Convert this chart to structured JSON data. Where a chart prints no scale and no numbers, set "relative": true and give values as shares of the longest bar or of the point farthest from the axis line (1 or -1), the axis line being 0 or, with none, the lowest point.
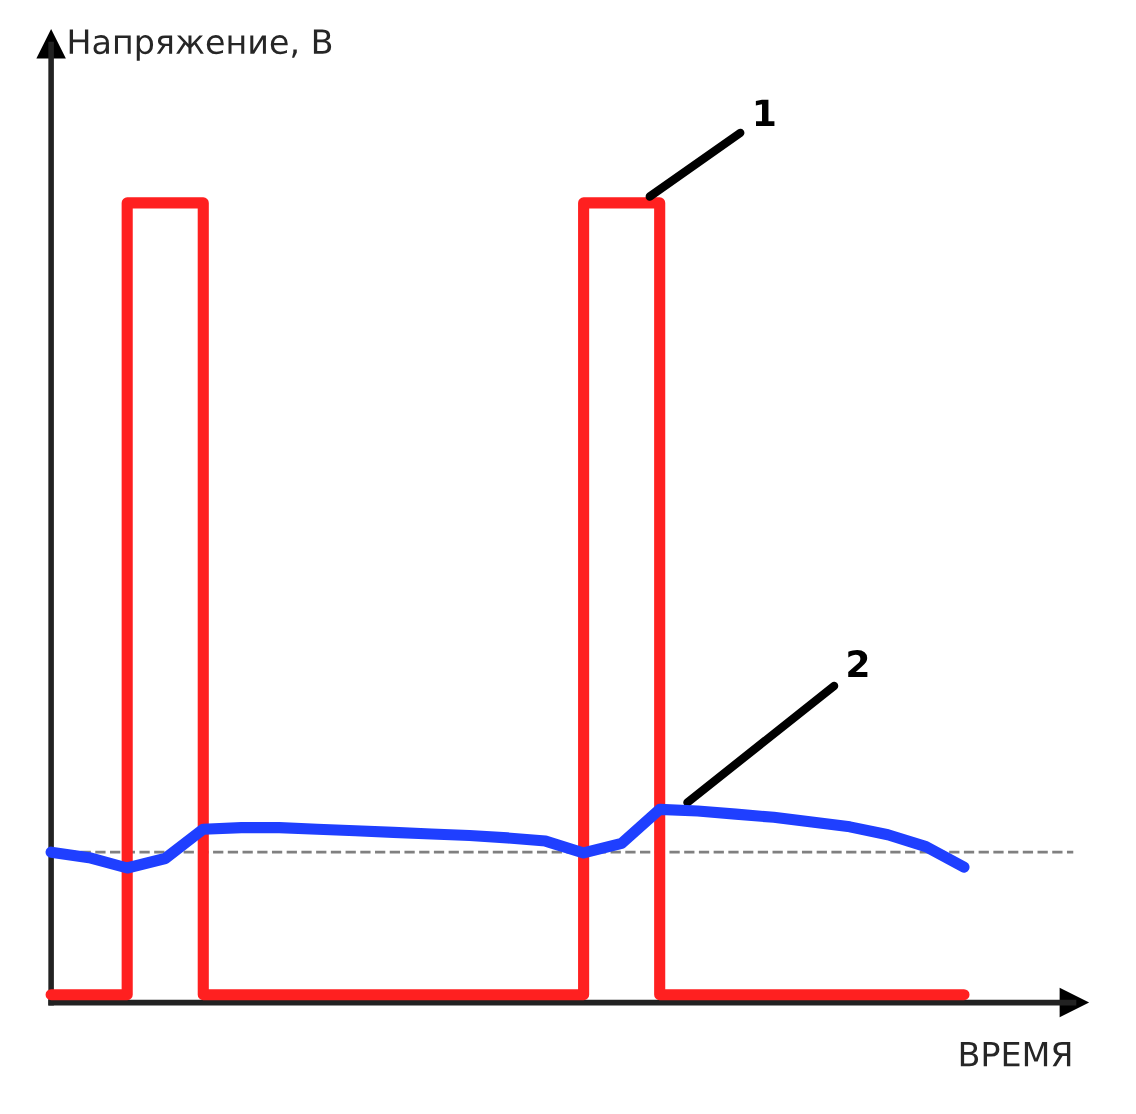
{
  "chart_data": {
    "type": "line",
    "relative": true,
    "xlabel": "ВРЕМЯ",
    "ylabel": "Напряжение, В",
    "legend": false,
    "marker": "none",
    "line_style": "solid",
    "categories": [
      null,
      null,
      null,
      null,
      null,
      null,
      null,
      null,
      null,
      null,
      null,
      null,
      null,
      null,
      null,
      null,
      null,
      null,
      null,
      null,
      null,
      null,
      null,
      null,
      null
    ],
    "series": [
      {
        "name": "1",
        "type": "step",
        "color": "#ff2020",
        "values": [
          0,
          0,
          1,
          1,
          0,
          0,
          0,
          0,
          0,
          0,
          0,
          0,
          0,
          0,
          1,
          1,
          0,
          0,
          0,
          0,
          0,
          0,
          0,
          0,
          0
        ]
      },
      {
        "name": "2",
        "color": "#1f3fff",
        "values": [
          0.18,
          0.173,
          0.16,
          0.172,
          0.209,
          0.211,
          0.211,
          0.209,
          0.207,
          0.205,
          0.203,
          0.201,
          0.198,
          0.194,
          0.179,
          0.191,
          0.234,
          0.232,
          0.228,
          0.224,
          0.218,
          0.212,
          0.202,
          0.187,
          0.161
        ]
      }
    ],
    "ref_lines": [
      {
        "axis": "y",
        "value": 0.18,
        "label": null,
        "color": "#808080",
        "line_style": "dashed"
      }
    ]
  }
}
